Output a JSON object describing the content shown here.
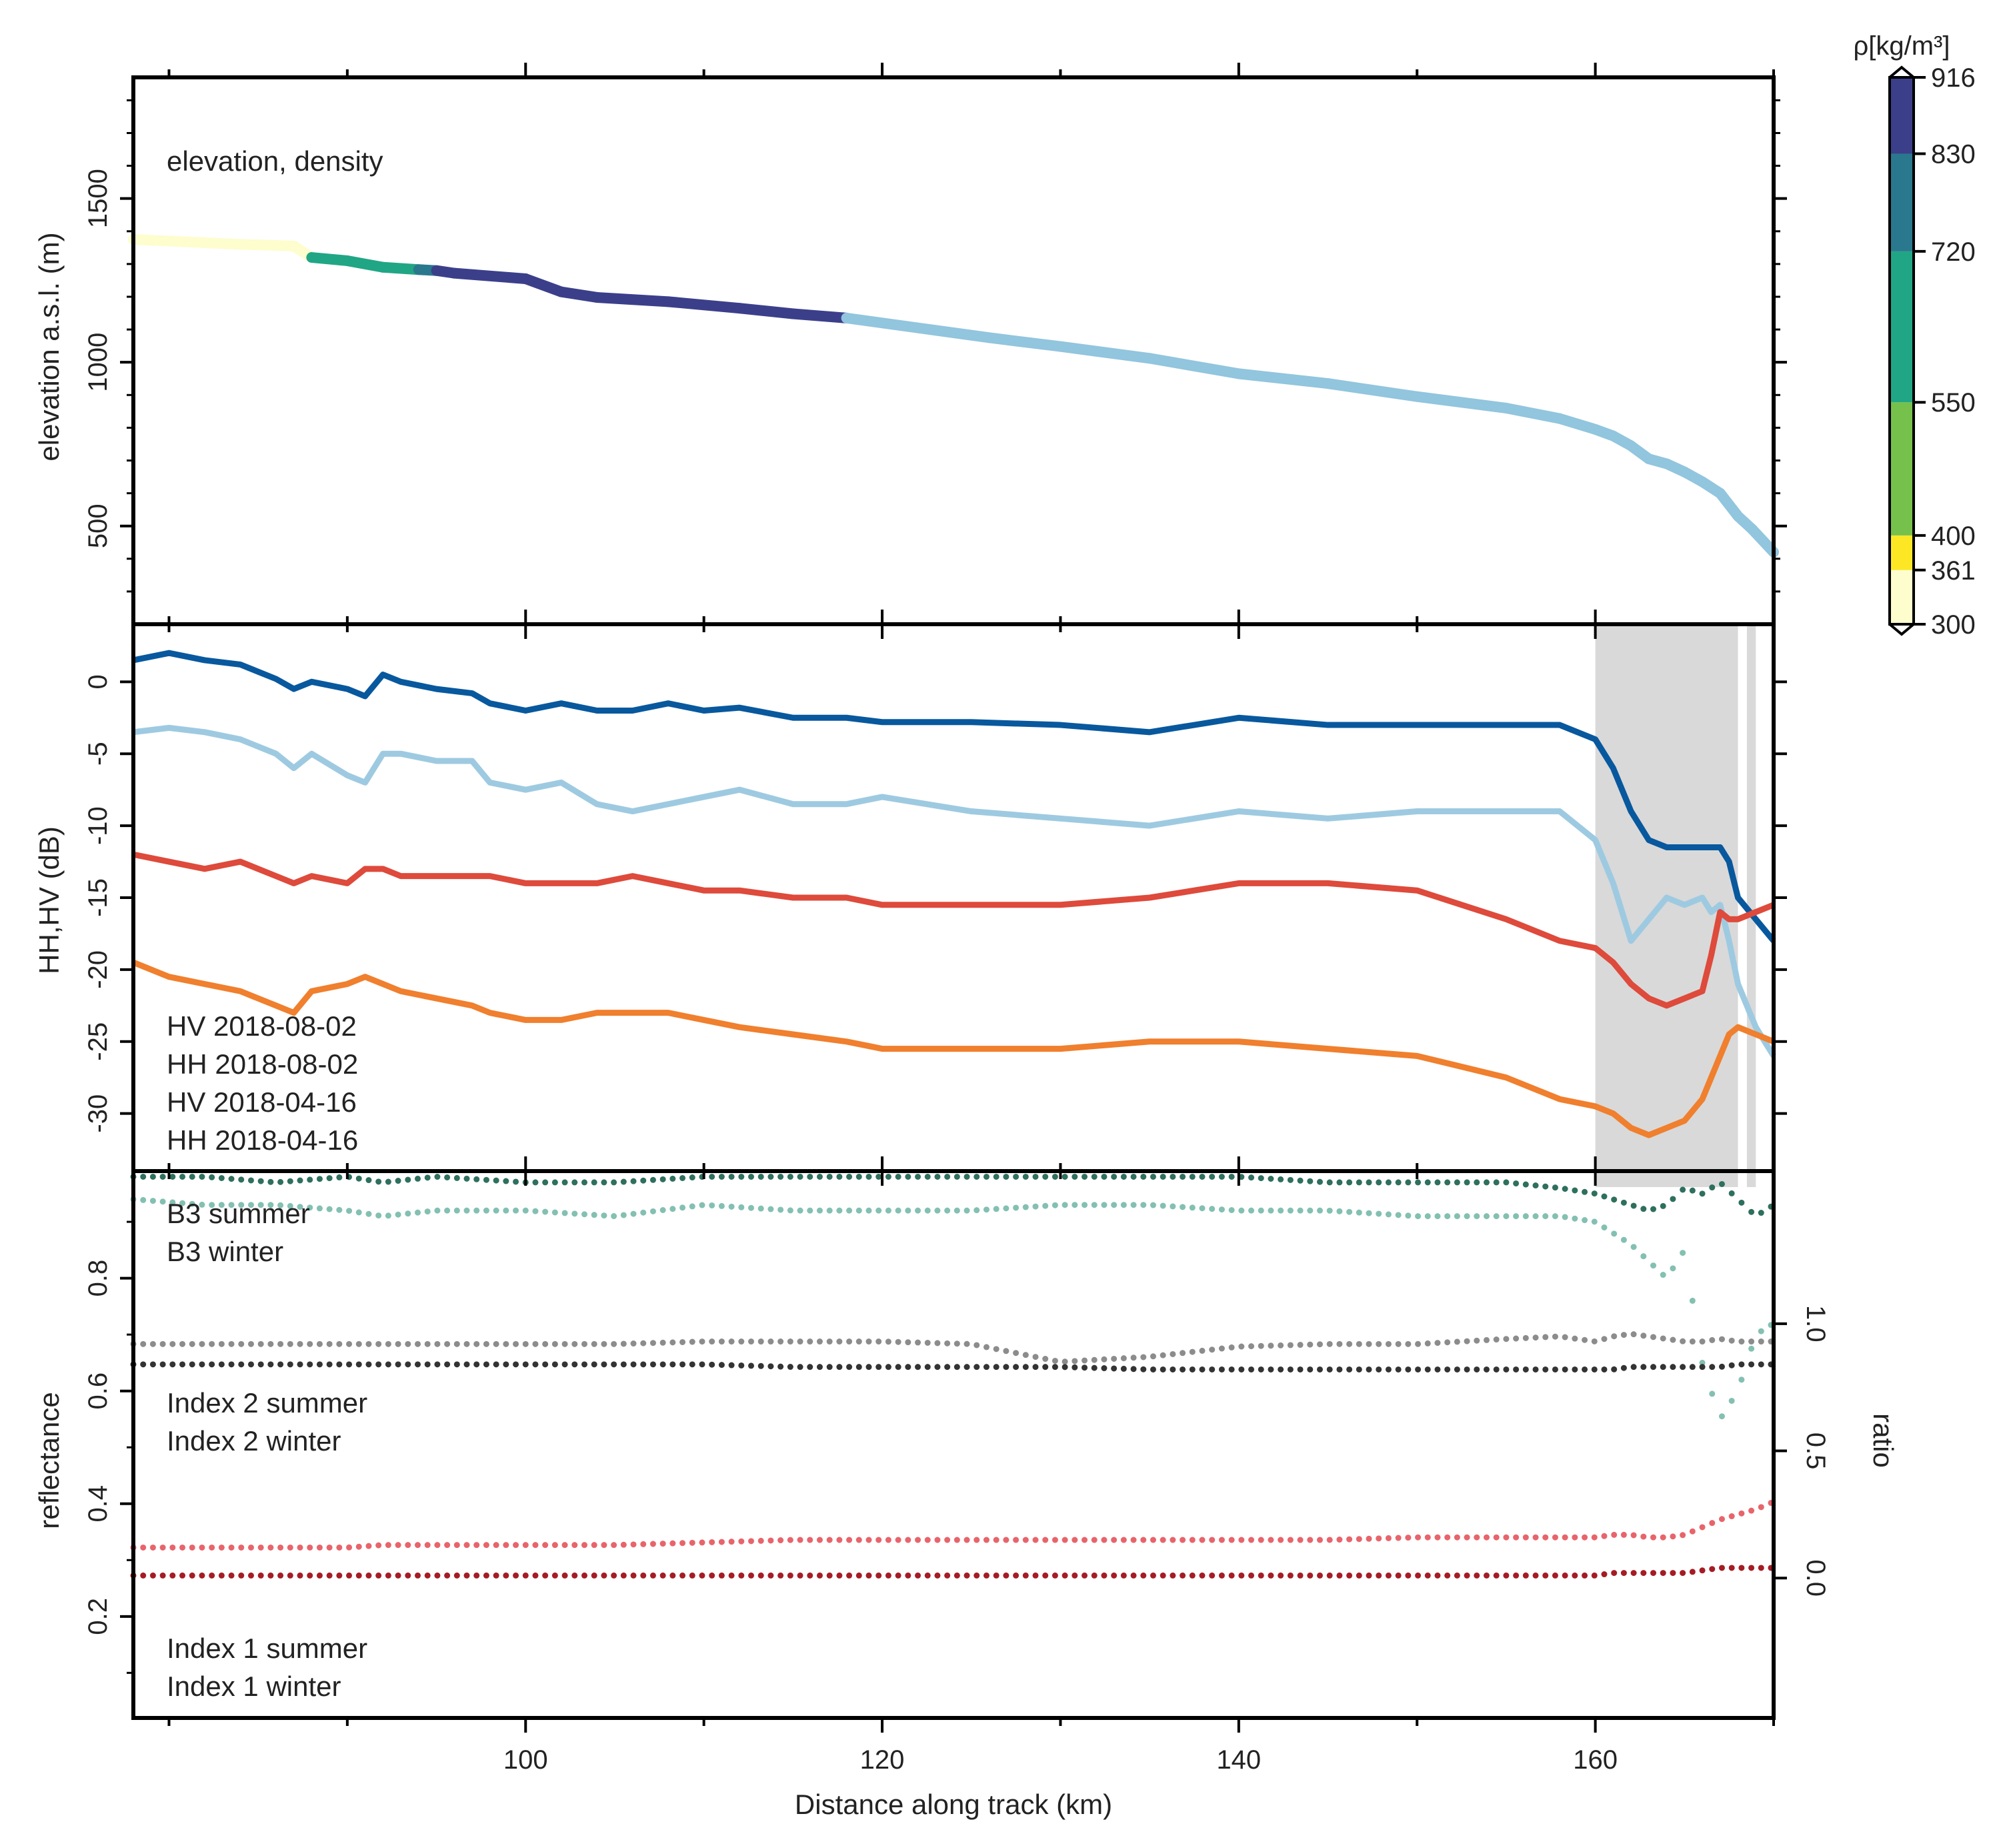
{
  "chart_data": [
    {
      "id": "elevation",
      "type": "line",
      "title": "elevation, density",
      "ylabel": "elevation a.s.l. (m)",
      "xlim": [
        78,
        170
      ],
      "ylim": [
        200,
        1870
      ],
      "yticks": [
        500,
        1000,
        1500
      ],
      "x": [
        78,
        84,
        87,
        88,
        90,
        92,
        94,
        95,
        96,
        100,
        102,
        104,
        108,
        112,
        115,
        118,
        122,
        126,
        130,
        135,
        140,
        145,
        150,
        155,
        158,
        160,
        161,
        162,
        163,
        164,
        165,
        166,
        167,
        168,
        168.8,
        170
      ],
      "y": [
        1375,
        1360,
        1355,
        1320,
        1310,
        1290,
        1283,
        1280,
        1272,
        1255,
        1215,
        1198,
        1185,
        1165,
        1148,
        1135,
        1105,
        1075,
        1048,
        1012,
        965,
        935,
        895,
        860,
        828,
        795,
        775,
        745,
        705,
        690,
        665,
        635,
        600,
        530,
        490,
        420
      ],
      "density": [
        300,
        300,
        300,
        560,
        630,
        700,
        780,
        860,
        900,
        900,
        900,
        900,
        900,
        900,
        900,
        916,
        916,
        916,
        916,
        916,
        916,
        916,
        916,
        916,
        916,
        916,
        916,
        916,
        916,
        916,
        916,
        916,
        916,
        916,
        916,
        916
      ],
      "ice_color": "#92c5de",
      "colorbar": {
        "title": "ρ[kg/m³]",
        "boundaries": [
          300,
          361,
          400,
          550,
          720,
          830,
          916
        ],
        "colors": [
          "#fdfdce",
          "#fde725",
          "#76c04c",
          "#21a685",
          "#2a788e",
          "#3b3f8a"
        ],
        "tick_labels": [
          "916",
          "830",
          "720",
          "550",
          "400",
          "361",
          "300"
        ]
      }
    },
    {
      "id": "backscatter",
      "type": "line",
      "ylabel": "HH,HV (dB)",
      "ylim": [
        -34,
        4
      ],
      "yticks": [
        0,
        -5,
        -10,
        -15,
        -20,
        -25,
        -30
      ],
      "shaded_x": [
        [
          160,
          168
        ],
        [
          168.5,
          169
        ]
      ],
      "x": [
        78,
        80,
        82,
        84,
        86,
        87,
        88,
        90,
        91,
        92,
        93,
        95,
        97,
        98,
        100,
        102,
        104,
        106,
        108,
        110,
        112,
        115,
        118,
        120,
        125,
        130,
        135,
        140,
        145,
        150,
        155,
        158,
        160,
        161,
        162,
        163,
        164,
        165,
        166,
        166.5,
        167,
        167.5,
        168,
        169,
        170
      ],
      "series": [
        {
          "name": "HH 2018-04-16",
          "color": "#08589e",
          "y": [
            1.5,
            2.0,
            1.5,
            1.2,
            0.2,
            -0.5,
            0.0,
            -0.5,
            -1.0,
            0.5,
            0.0,
            -0.5,
            -0.8,
            -1.5,
            -2.0,
            -1.5,
            -2.0,
            -2.0,
            -1.5,
            -2.0,
            -1.8,
            -2.5,
            -2.5,
            -2.8,
            -2.8,
            -3.0,
            -3.5,
            -2.5,
            -3.0,
            -3.0,
            -3.0,
            -3.0,
            -4.0,
            -6.0,
            -9.0,
            -11.0,
            -11.5,
            -11.5,
            -11.5,
            -11.5,
            -11.5,
            -12.5,
            -15.0,
            -16.5,
            -18.0
          ]
        },
        {
          "name": "HV 2018-04-16",
          "color": "#9ecae1",
          "y": [
            -3.5,
            -3.2,
            -3.5,
            -4.0,
            -5.0,
            -6.0,
            -5.0,
            -6.5,
            -7.0,
            -5.0,
            -5.0,
            -5.5,
            -5.5,
            -7.0,
            -7.5,
            -7.0,
            -8.5,
            -9.0,
            -8.5,
            -8.0,
            -7.5,
            -8.5,
            -8.5,
            -8.0,
            -9.0,
            -9.5,
            -10.0,
            -9.0,
            -9.5,
            -9.0,
            -9.0,
            -9.0,
            -11.0,
            -14.0,
            -18.0,
            -16.5,
            -15.0,
            -15.5,
            -15.0,
            -16.0,
            -15.5,
            -18.0,
            -21.0,
            -24.0,
            -26.0
          ]
        },
        {
          "name": "HH 2018-08-02",
          "color": "#de4a3b",
          "y": [
            -12.0,
            -12.5,
            -13.0,
            -12.5,
            -13.5,
            -14.0,
            -13.5,
            -14.0,
            -13.0,
            -13.0,
            -13.5,
            -13.5,
            -13.5,
            -13.5,
            -14.0,
            -14.0,
            -14.0,
            -13.5,
            -14.0,
            -14.5,
            -14.5,
            -15.0,
            -15.0,
            -15.5,
            -15.5,
            -15.5,
            -15.0,
            -14.0,
            -14.0,
            -14.5,
            -16.5,
            -18.0,
            -18.5,
            -19.5,
            -21.0,
            -22.0,
            -22.5,
            -22.0,
            -21.5,
            -19.0,
            -16.0,
            -16.5,
            -16.5,
            -16.0,
            -15.5
          ]
        },
        {
          "name": "HV 2018-08-02",
          "color": "#f07f2e",
          "y": [
            -19.5,
            -20.5,
            -21.0,
            -21.5,
            -22.5,
            -23.0,
            -21.5,
            -21.0,
            -20.5,
            -21.0,
            -21.5,
            -22.0,
            -22.5,
            -23.0,
            -23.5,
            -23.5,
            -23.0,
            -23.0,
            -23.0,
            -23.5,
            -24.0,
            -24.5,
            -25.0,
            -25.5,
            -25.5,
            -25.5,
            -25.0,
            -25.0,
            -25.5,
            -26.0,
            -27.5,
            -29.0,
            -29.5,
            -30.0,
            -31.0,
            -31.5,
            -31.0,
            -30.5,
            -29.0,
            -27.5,
            -26.0,
            -24.5,
            -24.0,
            -24.5,
            -25.0
          ]
        }
      ],
      "legend": [
        "HV 2018-08-02",
        "HH 2018-08-02",
        "HV 2018-04-16",
        "HH 2018-04-16"
      ]
    },
    {
      "id": "optical",
      "type": "scatter",
      "ylabel": "reflectance",
      "ylabel_right": "ratio",
      "ylim": [
        0.02,
        0.99
      ],
      "yticks": [
        0.2,
        0.4,
        0.6,
        0.8
      ],
      "ylim_right": [
        -0.55,
        1.6
      ],
      "yticks_right": [
        0.0,
        0.5,
        1.0
      ],
      "x": [
        78,
        82,
        86,
        90,
        92,
        95,
        100,
        105,
        110,
        115,
        120,
        125,
        130,
        135,
        140,
        145,
        150,
        155,
        158,
        160,
        161,
        162,
        163,
        164,
        165,
        166,
        167,
        168,
        169,
        170
      ],
      "series": [
        {
          "name": "B3 winter",
          "color": "#2e6f5e",
          "axis": "left",
          "y": [
            0.98,
            0.98,
            0.97,
            0.98,
            0.97,
            0.98,
            0.97,
            0.97,
            0.98,
            0.98,
            0.98,
            0.98,
            0.98,
            0.98,
            0.98,
            0.97,
            0.97,
            0.97,
            0.96,
            0.95,
            0.94,
            0.93,
            0.92,
            0.93,
            0.96,
            0.95,
            0.97,
            0.94,
            0.91,
            0.93
          ]
        },
        {
          "name": "B3 summer",
          "color": "#83c0b2",
          "axis": "left",
          "y": [
            0.94,
            0.93,
            0.93,
            0.92,
            0.91,
            0.92,
            0.92,
            0.91,
            0.93,
            0.92,
            0.92,
            0.92,
            0.93,
            0.93,
            0.92,
            0.92,
            0.91,
            0.91,
            0.91,
            0.9,
            0.88,
            0.86,
            0.83,
            0.8,
            0.85,
            0.65,
            0.55,
            0.6,
            0.7,
            0.72
          ]
        },
        {
          "name": "Index 2 summer",
          "color": "#8c8c8c",
          "axis": "right",
          "y": [
            0.92,
            0.92,
            0.92,
            0.92,
            0.92,
            0.92,
            0.92,
            0.92,
            0.93,
            0.93,
            0.93,
            0.92,
            0.85,
            0.87,
            0.91,
            0.92,
            0.92,
            0.94,
            0.95,
            0.93,
            0.95,
            0.96,
            0.95,
            0.94,
            0.93,
            0.93,
            0.94,
            0.93,
            0.93,
            0.93
          ]
        },
        {
          "name": "Index 2 winter",
          "color": "#333333",
          "axis": "right",
          "y": [
            0.84,
            0.84,
            0.84,
            0.84,
            0.84,
            0.84,
            0.84,
            0.84,
            0.84,
            0.83,
            0.83,
            0.83,
            0.83,
            0.82,
            0.82,
            0.82,
            0.82,
            0.82,
            0.82,
            0.82,
            0.82,
            0.83,
            0.83,
            0.83,
            0.83,
            0.83,
            0.83,
            0.84,
            0.84,
            0.84
          ]
        },
        {
          "name": "Index 1 summer",
          "color": "#e8646b",
          "axis": "right",
          "y": [
            0.12,
            0.12,
            0.12,
            0.12,
            0.13,
            0.13,
            0.13,
            0.13,
            0.14,
            0.15,
            0.15,
            0.15,
            0.15,
            0.15,
            0.15,
            0.15,
            0.16,
            0.16,
            0.16,
            0.16,
            0.17,
            0.17,
            0.16,
            0.16,
            0.17,
            0.2,
            0.23,
            0.25,
            0.27,
            0.3
          ]
        },
        {
          "name": "Index 1 winter",
          "color": "#a51c24",
          "axis": "right",
          "y": [
            0.01,
            0.01,
            0.01,
            0.01,
            0.01,
            0.01,
            0.01,
            0.01,
            0.01,
            0.01,
            0.01,
            0.01,
            0.01,
            0.01,
            0.01,
            0.01,
            0.01,
            0.01,
            0.01,
            0.01,
            0.02,
            0.02,
            0.02,
            0.02,
            0.02,
            0.03,
            0.04,
            0.04,
            0.04,
            0.04
          ]
        }
      ],
      "legend": [
        "B3 summer",
        "B3 winter",
        "Index 2 summer",
        "Index 2 winter",
        "Index 1 summer",
        "Index 1 winter"
      ]
    }
  ],
  "x_axis": {
    "label": "Distance along track (km)",
    "ticks": [
      100,
      120,
      140,
      160
    ],
    "tick_labels": [
      "100",
      "120",
      "140",
      "160"
    ]
  }
}
